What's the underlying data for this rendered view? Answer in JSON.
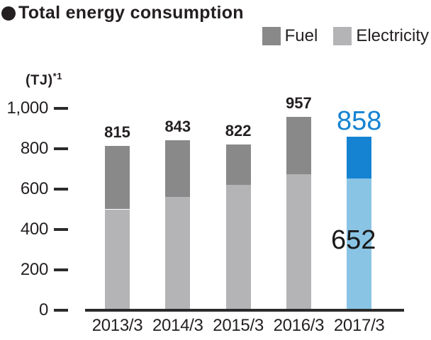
{
  "title": {
    "bullet": "●",
    "text": "Total energy consumption"
  },
  "legend": [
    {
      "label": "Fuel",
      "color": "#898989"
    },
    {
      "label": "Electricity",
      "color": "#b4b4b6"
    }
  ],
  "y_axis": {
    "unit": "(TJ)",
    "unit_note": "*1",
    "tick_labels": [
      "1,000",
      "800",
      "600",
      "400",
      "200",
      "0"
    ],
    "tick_values": [
      1000,
      800,
      600,
      400,
      200,
      0
    ]
  },
  "chart_data": {
    "type": "bar",
    "stacked": true,
    "title": "Total energy consumption",
    "ylabel": "(TJ)",
    "ylim": [
      0,
      1000
    ],
    "legend_position": "top-right",
    "grid": false,
    "categories": [
      "2013/3",
      "2014/3",
      "2015/3",
      "2016/3",
      "2017/3"
    ],
    "series": [
      {
        "name": "Electricity",
        "values": [
          500,
          560,
          620,
          675,
          652
        ]
      },
      {
        "name": "Fuel",
        "values": [
          315,
          283,
          202,
          282,
          206
        ]
      }
    ],
    "totals": [
      815,
      843,
      822,
      957,
      858
    ],
    "total_labels": [
      "815",
      "843",
      "822",
      "957",
      "858"
    ],
    "highlight_index": 4,
    "highlight_electricity_label": "652"
  },
  "colors": {
    "fuel": "#898989",
    "electricity": "#b4b4b6",
    "highlight_fuel": "#1583d1",
    "highlight_electricity": "#8ac4e5",
    "text": "#231f20",
    "axis": "#2b2b2b"
  }
}
